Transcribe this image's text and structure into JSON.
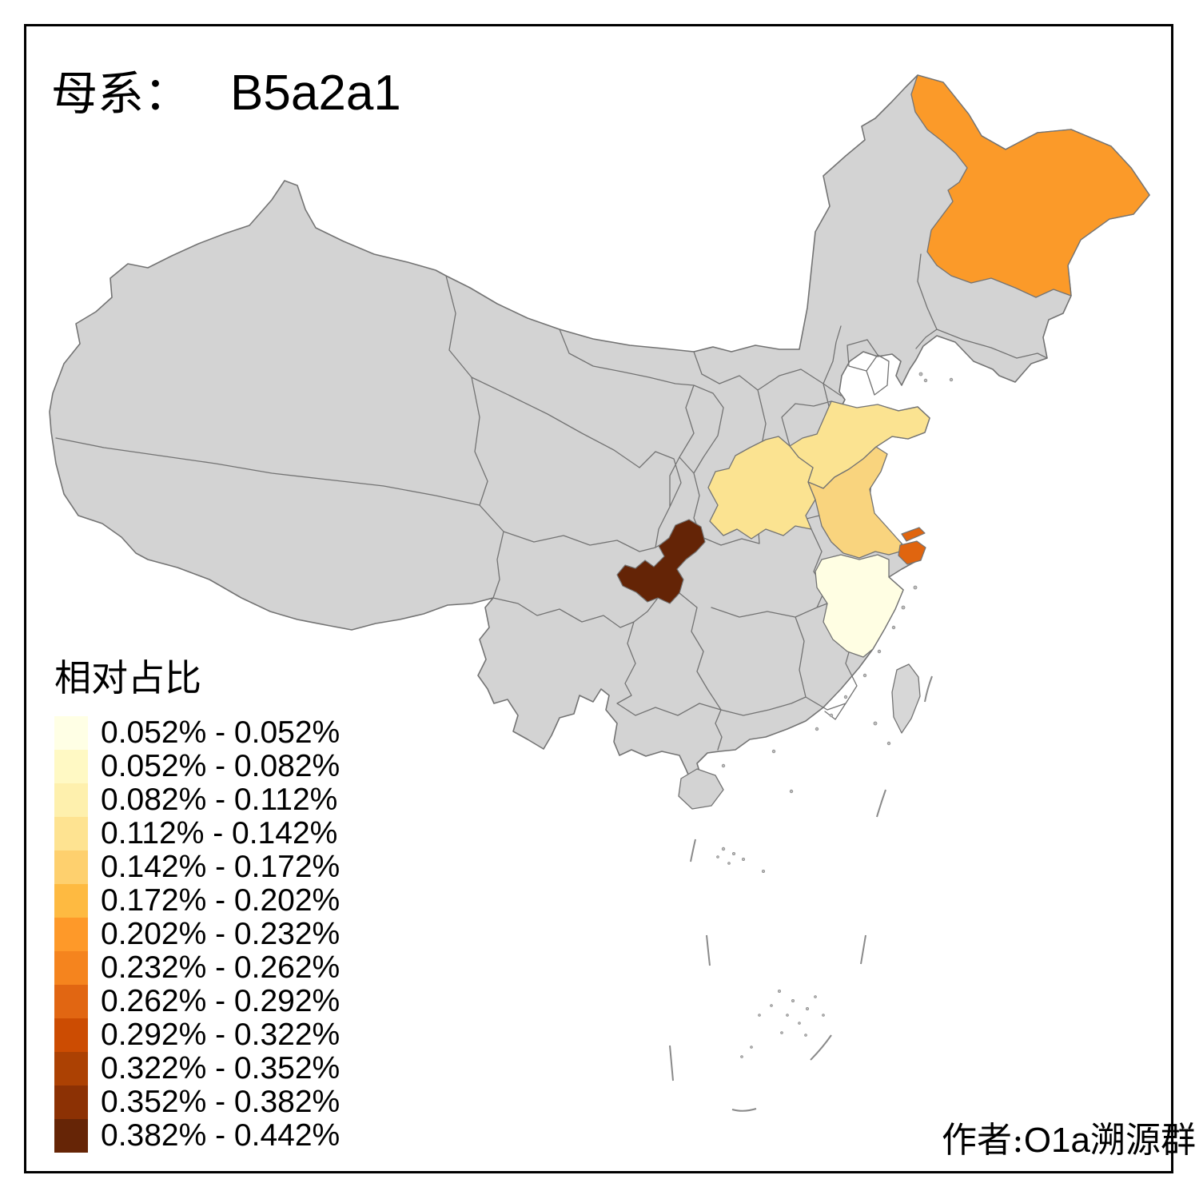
{
  "title": {
    "label": "母系：",
    "value": "B5a2a1"
  },
  "legend": {
    "title": "相对占比",
    "classes": [
      {
        "label": "0.052% - 0.052%",
        "color": "#FFFFE5"
      },
      {
        "label": "0.052% - 0.082%",
        "color": "#FFF9C4"
      },
      {
        "label": "0.082% - 0.112%",
        "color": "#FEF0AD"
      },
      {
        "label": "0.112% - 0.142%",
        "color": "#FEE391"
      },
      {
        "label": "0.142% - 0.172%",
        "color": "#FED06E"
      },
      {
        "label": "0.172% - 0.202%",
        "color": "#FEBA41"
      },
      {
        "label": "0.202% - 0.232%",
        "color": "#FE9929"
      },
      {
        "label": "0.232% - 0.262%",
        "color": "#F5841E"
      },
      {
        "label": "0.262% - 0.292%",
        "color": "#E16612"
      },
      {
        "label": "0.292% - 0.322%",
        "color": "#CC4C02"
      },
      {
        "label": "0.322% - 0.352%",
        "color": "#AC4103"
      },
      {
        "label": "0.352% - 0.382%",
        "color": "#8C3104"
      },
      {
        "label": "0.382% - 0.442%",
        "color": "#662506"
      }
    ]
  },
  "credit": {
    "prefix": "作者:",
    "group": "O1a",
    "suffix": "溯源群"
  },
  "map": {
    "background": "#FFFFFF",
    "default_fill": "#D3D3D3",
    "border_color": "#737373",
    "region_fills": {
      "heilongjiang": "#FB9A29",
      "shandong": "#FBE391",
      "henan": "#FBE391",
      "jiangsu": "#F9D47E",
      "shanghai": "#E0650F",
      "zhejiang": "#FFFEE3",
      "chongqing": "#642406"
    }
  }
}
